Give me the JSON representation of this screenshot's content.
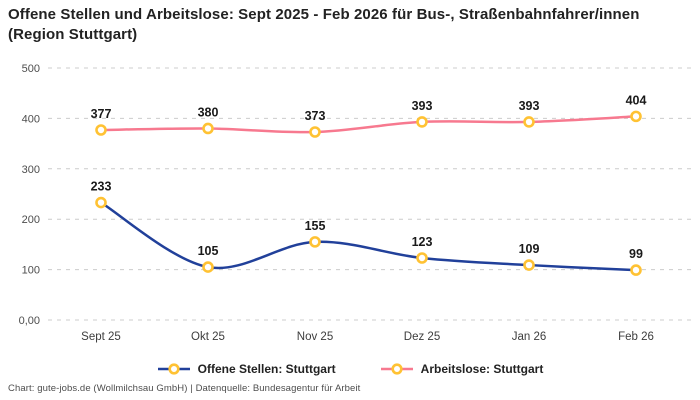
{
  "title": "Offene Stellen und Arbeitslose: Sept 2025 - Feb 2026 für Bus-, Straßenbahnfahrer/innen (Region Stuttgart)",
  "footer": "Chart: gute-jobs.de (Wollmilchsau GmbH) | Datenquelle: Bundesagentur für Arbeit",
  "colors": {
    "grid": "#cccccc",
    "tick_text": "#4d4d4d",
    "data_label": "#1a1a1a",
    "marker_ring": "#ffc233",
    "marker_fill": "#ffffff",
    "series_open_positions": "#21409a",
    "series_unemployed": "#f7798f"
  },
  "chart_data": {
    "type": "line",
    "title": "Offene Stellen und Arbeitslose: Sept 2025 - Feb 2026 für Bus-, Straßenbahnfahrer/innen (Region Stuttgart)",
    "categories": [
      "Sept 25",
      "Okt 25",
      "Nov 25",
      "Dez 25",
      "Jan 26",
      "Feb 26"
    ],
    "series": [
      {
        "name": "Offene Stellen: Stuttgart",
        "values": [
          233,
          105,
          155,
          123,
          109,
          99
        ],
        "color": "#21409a"
      },
      {
        "name": "Arbeitslose: Stuttgart",
        "values": [
          377,
          380,
          373,
          393,
          393,
          404
        ],
        "color": "#f7798f"
      }
    ],
    "xlabel": "",
    "ylabel": "",
    "ylim": [
      0,
      500
    ],
    "yticks": {
      "values": [
        0,
        100,
        200,
        300,
        400,
        500
      ],
      "labels": [
        "0,00",
        "100",
        "200",
        "300",
        "400",
        "500"
      ]
    },
    "grid": "horizontal-dashed",
    "legend_position": "bottom",
    "marker": {
      "shape": "circle",
      "fill": "#ffffff",
      "stroke": "#ffc233"
    },
    "point_labels": true
  }
}
